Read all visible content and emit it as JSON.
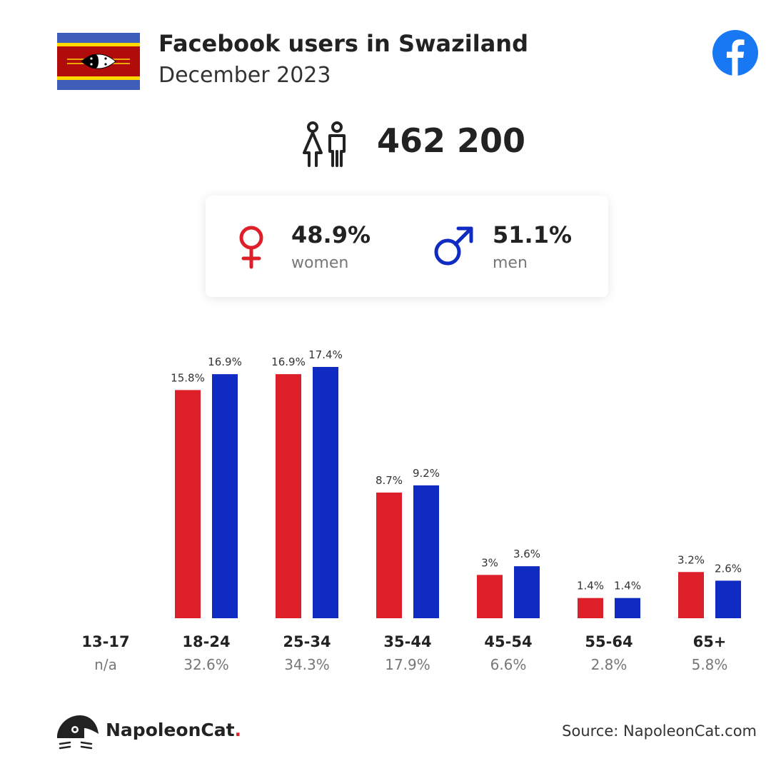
{
  "header": {
    "title": "Facebook users in Swaziland",
    "subtitle": "December 2023"
  },
  "summary": {
    "total_users": "462 200"
  },
  "gender": {
    "women": {
      "percent": "48.9%",
      "label": "women"
    },
    "men": {
      "percent": "51.1%",
      "label": "men"
    }
  },
  "colors": {
    "women": "#dd1f2a",
    "men": "#0f2bc2",
    "facebook": "#1877f2"
  },
  "icons": [
    "flag-eswatini-icon",
    "facebook-icon",
    "users-icon",
    "female-symbol-icon",
    "male-symbol-icon",
    "napoleoncat-logo-icon"
  ],
  "chart_data": {
    "type": "bar",
    "categories": [
      "13-17",
      "18-24",
      "25-34",
      "35-44",
      "45-54",
      "55-64",
      "65+"
    ],
    "category_totals": [
      "n/a",
      "32.6%",
      "34.3%",
      "17.9%",
      "6.6%",
      "2.8%",
      "5.8%"
    ],
    "series": [
      {
        "name": "women",
        "values": [
          null,
          15.8,
          16.9,
          8.7,
          3,
          1.4,
          3.2
        ],
        "labels": [
          "",
          "15.8%",
          "16.9%",
          "8.7%",
          "3%",
          "1.4%",
          "3.2%"
        ]
      },
      {
        "name": "men",
        "values": [
          null,
          16.9,
          17.4,
          9.2,
          3.6,
          1.4,
          2.6
        ],
        "labels": [
          "",
          "16.9%",
          "17.4%",
          "9.2%",
          "3.6%",
          "1.4%",
          "2.6%"
        ]
      }
    ],
    "ylim": [
      0,
      17.4
    ],
    "grid": false
  },
  "footer": {
    "brand_name": "NapoleonCat",
    "brand_suffix": ".",
    "source": "Source: NapoleonCat.com"
  }
}
